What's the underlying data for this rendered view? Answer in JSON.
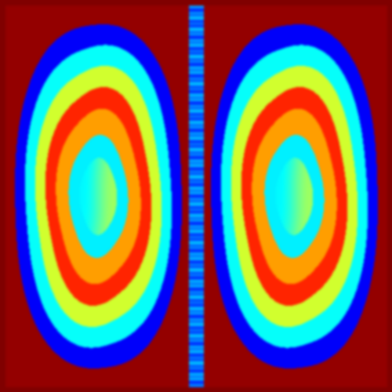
{
  "image": {
    "kind": "color-mapped scalar field",
    "colormap": "jet",
    "colors": {
      "red": "#ff0000",
      "orange": "#ff8000",
      "yellow": "#ffff00",
      "green": "#00ff00",
      "cyan": "#00ffff",
      "blue": "#0000ff"
    }
  }
}
